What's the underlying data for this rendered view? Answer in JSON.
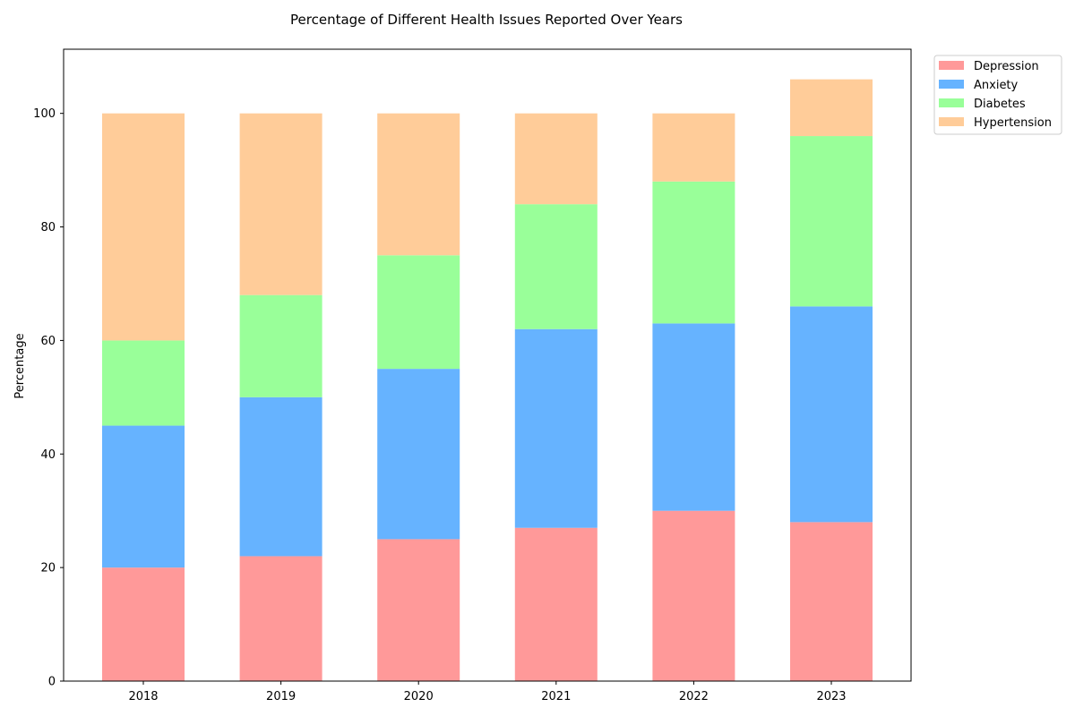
{
  "chart_data": {
    "type": "bar",
    "stacked": true,
    "title": "Percentage of Different Health Issues Reported Over Years",
    "xlabel": "",
    "ylabel": "Percentage",
    "categories": [
      "2018",
      "2019",
      "2020",
      "2021",
      "2022",
      "2023"
    ],
    "series": [
      {
        "name": "Depression",
        "color": "#ff9999",
        "values": [
          20,
          22,
          25,
          27,
          30,
          28
        ]
      },
      {
        "name": "Anxiety",
        "color": "#66b3ff",
        "values": [
          25,
          28,
          30,
          35,
          33,
          38
        ]
      },
      {
        "name": "Diabetes",
        "color": "#99ff99",
        "values": [
          15,
          18,
          20,
          22,
          25,
          30
        ]
      },
      {
        "name": "Hypertension",
        "color": "#ffcc99",
        "values": [
          40,
          32,
          25,
          16,
          12,
          10
        ]
      }
    ],
    "ylim": [
      0,
      111.3
    ],
    "yticks": [
      0,
      20,
      40,
      60,
      80,
      100
    ],
    "grid": false,
    "legend_position": "outside top-right"
  }
}
